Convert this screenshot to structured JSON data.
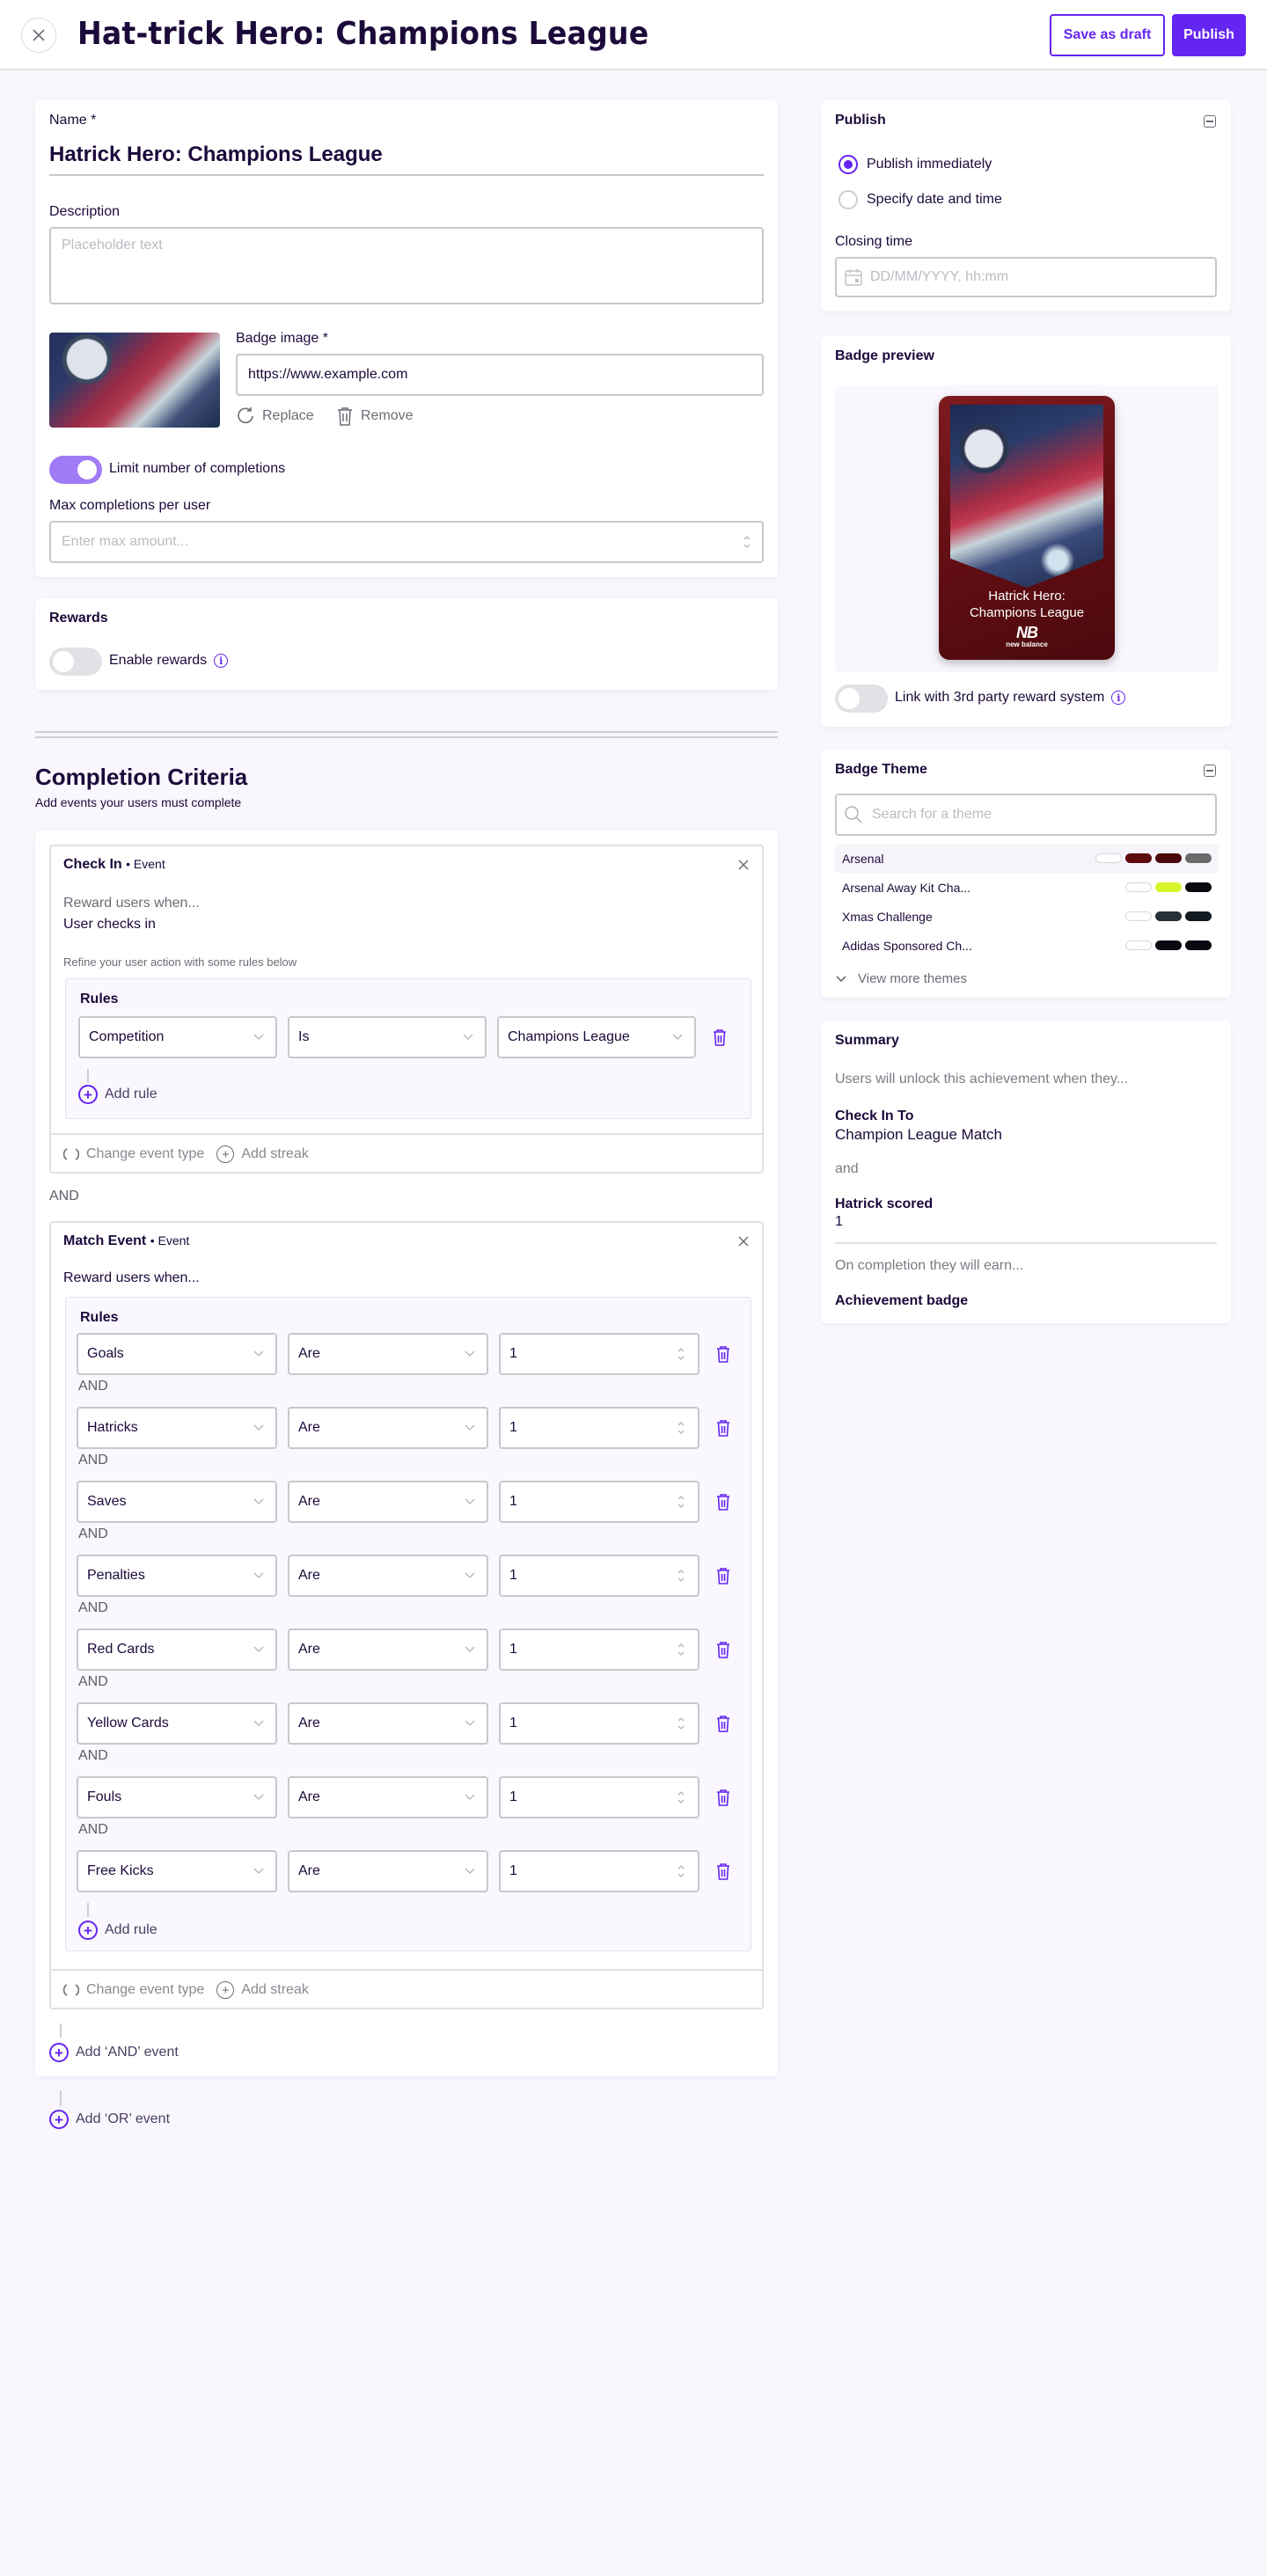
{
  "header": {
    "title": "Hat-trick Hero: Champions League",
    "save_draft_label": "Save as draft",
    "publish_label": "Publish"
  },
  "details": {
    "name_label": "Name *",
    "name_value": "Hatrick Hero: Champions League",
    "description_label": "Description",
    "description_placeholder": "Placeholder text",
    "badge_image_label": "Badge image *",
    "badge_image_url": "https://www.example.com",
    "replace_label": "Replace",
    "remove_label": "Remove",
    "limit_toggle_label": "Limit number of completions",
    "limit_toggle_on": true,
    "max_completions_label": "Max completions per user",
    "max_completions_placeholder": "Enter max amount..."
  },
  "rewards": {
    "title": "Rewards",
    "enable_label": "Enable rewards",
    "enabled": false
  },
  "criteria": {
    "title": "Completion Criteria",
    "subtitle": "Add events your users must complete",
    "events": [
      {
        "name": "Check In",
        "type_suffix": "• Event",
        "reward_prompt": "Reward users when...",
        "action": "User checks in",
        "refine_hint": "Refine your user action with some rules below",
        "rules_title": "Rules",
        "rules": [
          {
            "field": "Competition",
            "operator": "Is",
            "value": "Champions League"
          }
        ],
        "add_rule_label": "Add rule",
        "change_type_label": "Change event type",
        "add_streak_label": "Add streak"
      },
      {
        "name": "Match Event",
        "type_suffix": "• Event",
        "reward_prompt": "Reward users when...",
        "rules_title": "Rules",
        "rule_joiner": "AND",
        "rules": [
          {
            "field": "Goals",
            "operator": "Are",
            "value": "1"
          },
          {
            "field": "Hatricks",
            "operator": "Are",
            "value": "1"
          },
          {
            "field": "Saves",
            "operator": "Are",
            "value": "1"
          },
          {
            "field": "Penalties",
            "operator": "Are",
            "value": "1"
          },
          {
            "field": "Red Cards",
            "operator": "Are",
            "value": "1"
          },
          {
            "field": "Yellow Cards",
            "operator": "Are",
            "value": "1"
          },
          {
            "field": "Fouls",
            "operator": "Are",
            "value": "1"
          },
          {
            "field": "Free Kicks",
            "operator": "Are",
            "value": "1"
          }
        ],
        "add_rule_label": "Add rule",
        "change_type_label": "Change event type",
        "add_streak_label": "Add streak"
      }
    ],
    "event_joiner": "AND",
    "add_and_event_label": "Add ‘AND’ event",
    "add_or_event_label": "Add ‘OR’ event"
  },
  "publish": {
    "title": "Publish",
    "options": [
      {
        "label": "Publish immediately",
        "selected": true
      },
      {
        "label": "Specify date and time",
        "selected": false
      }
    ],
    "closing_time_label": "Closing time",
    "closing_time_placeholder": "DD/MM/YYYY, hh:mm"
  },
  "badge_preview": {
    "title": "Badge preview",
    "card_title_line1": "Hatrick Hero:",
    "card_title_line2": "Champions League",
    "sponsor_mark": "NB",
    "sponsor_name": "new balance",
    "link_label": "Link with 3rd party reward system",
    "link_enabled": false
  },
  "badge_theme": {
    "title": "Badge Theme",
    "search_placeholder": "Search for a theme",
    "themes": [
      {
        "name": "Arsenal",
        "colors": [
          "#ffffff",
          "#5e0a0f",
          "#4a070b",
          "#6a6a6a"
        ],
        "active": true
      },
      {
        "name": "Arsenal Away Kit Cha...",
        "colors": [
          "#ffffff",
          "#d7f52a",
          "#0b0810"
        ],
        "active": false
      },
      {
        "name": "Xmas Challenge",
        "colors": [
          "#ffffff",
          "#283036",
          "#131a20"
        ],
        "active": false
      },
      {
        "name": "Adidas Sponsored Ch...",
        "colors": [
          "#ffffff",
          "#0a0810",
          "#0a0810"
        ],
        "active": false
      }
    ],
    "view_more_label": "View more themes"
  },
  "summary": {
    "title": "Summary",
    "intro": "Users will unlock this achievement when they...",
    "item1_title": "Check In To",
    "item1_value": "Champion League Match",
    "joiner": "and",
    "item2_title": "Hatrick scored",
    "item2_value": "1",
    "outro": "On completion they will earn...",
    "reward": "Achievement badge"
  },
  "colors": {
    "accent": "#6424f2",
    "toggle_on": "#a07bf5",
    "background": "#f9f7fd"
  }
}
